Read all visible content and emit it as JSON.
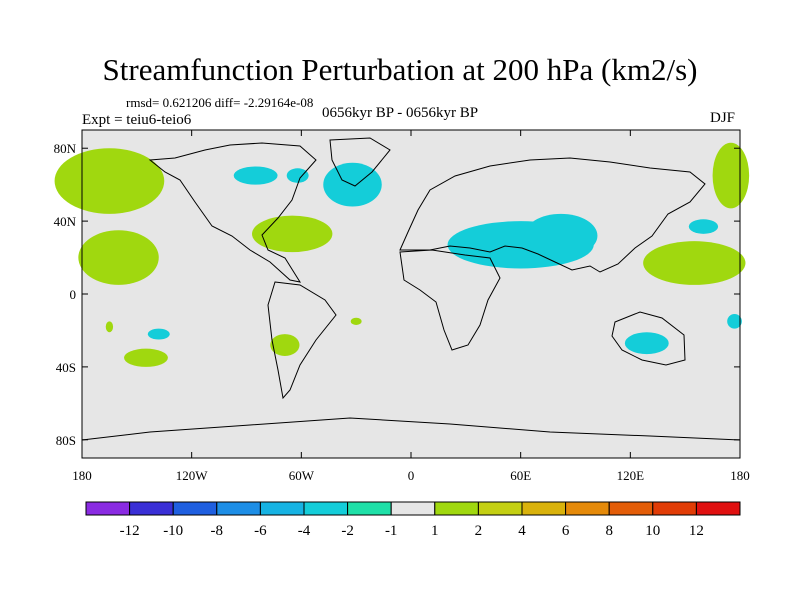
{
  "chart_data": {
    "type": "heatmap",
    "title": "Streamfunction Perturbation at 200 hPa (km2/s)",
    "stats_line": "rmsd= 0.621206 diff= -2.29164e-08",
    "period": "0656kyr BP - 0656kyr BP",
    "experiment": "Expt = teiu6-teio6",
    "season": "DJF",
    "x_axis": {
      "range": [
        -180,
        180
      ],
      "ticks": [
        -180,
        -120,
        -60,
        0,
        60,
        120,
        180
      ],
      "tick_labels": [
        "180",
        "120W",
        "60W",
        "0",
        "60E",
        "120E",
        "180"
      ]
    },
    "y_axis": {
      "range": [
        -90,
        90
      ],
      "ticks": [
        80,
        40,
        0,
        -40,
        -80
      ],
      "tick_labels": [
        "80N",
        "40N",
        "0",
        "40S",
        "80S"
      ]
    },
    "colorbar": {
      "levels": [
        "-12",
        "-10",
        "-8",
        "-6",
        "-4",
        "-2",
        "-1",
        "1",
        "2",
        "4",
        "6",
        "8",
        "10",
        "12"
      ],
      "colors": [
        "#8a2be2",
        "#3a2fd6",
        "#1f5fe0",
        "#1d8ee6",
        "#17b3e3",
        "#14cdd9",
        "#1fe0a8",
        "#e6e6e6",
        "#a0d80f",
        "#c4cf12",
        "#d9b20c",
        "#e58a0a",
        "#e35d08",
        "#e13c06",
        "#e01010"
      ]
    },
    "regions": [
      {
        "label": "2",
        "lon": -165,
        "lat": 62,
        "dlon": 30,
        "dlat": 18
      },
      {
        "label": "2",
        "lon": -160,
        "lat": 20,
        "dlon": 22,
        "dlat": 15
      },
      {
        "label": "2",
        "lon": -145,
        "lat": -35,
        "dlon": 12,
        "dlat": 5
      },
      {
        "label": "-2",
        "lon": -138,
        "lat": -22,
        "dlon": 6,
        "dlat": 3
      },
      {
        "label": "-2",
        "lon": -85,
        "lat": 65,
        "dlon": 12,
        "dlat": 5
      },
      {
        "label": "-2",
        "lon": -62,
        "lat": 65,
        "dlon": 6,
        "dlat": 4
      },
      {
        "label": "2",
        "lon": -65,
        "lat": 33,
        "dlon": 22,
        "dlat": 10
      },
      {
        "label": "-2",
        "lon": -32,
        "lat": 60,
        "dlon": 16,
        "dlat": 12
      },
      {
        "label": "2",
        "lon": -69,
        "lat": -28,
        "dlon": 8,
        "dlat": 6
      },
      {
        "label": "2",
        "lon": -30,
        "lat": -15,
        "dlon": 3,
        "dlat": 2
      },
      {
        "label": "-2",
        "lon": 60,
        "lat": 27,
        "dlon": 40,
        "dlat": 13
      },
      {
        "label": "-2",
        "lon": 82,
        "lat": 32,
        "dlon": 20,
        "dlat": 12
      },
      {
        "label": "-2",
        "lon": 129,
        "lat": -27,
        "dlon": 12,
        "dlat": 6
      },
      {
        "label": "2",
        "lon": 155,
        "lat": 17,
        "dlon": 28,
        "dlat": 12
      },
      {
        "label": "2",
        "lon": 175,
        "lat": 65,
        "dlon": 10,
        "dlat": 18
      },
      {
        "label": "-2",
        "lon": 160,
        "lat": 37,
        "dlon": 8,
        "dlat": 4
      },
      {
        "label": "-2",
        "lon": 177,
        "lat": -15,
        "dlon": 4,
        "dlat": 4
      },
      {
        "label": "2",
        "lon": -165,
        "lat": -18,
        "dlon": 2,
        "dlat": 3
      }
    ]
  }
}
